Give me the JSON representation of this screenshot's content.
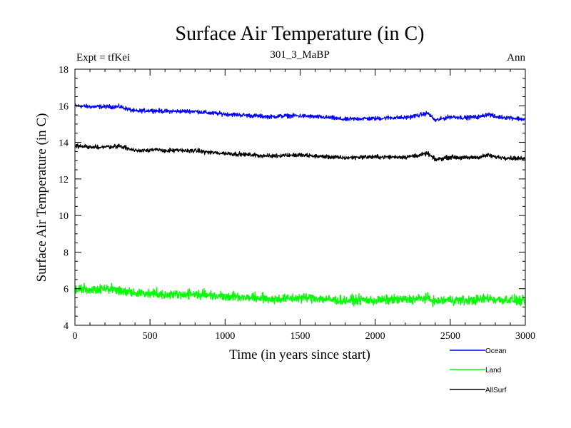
{
  "chart_data": {
    "type": "line",
    "title": "Surface Air Temperature (in C)",
    "subtitle_left": "Expt = tfKei",
    "subtitle_center": "301_3_MaBP",
    "subtitle_right": "Ann",
    "xlabel": "Time (in years since start)",
    "ylabel": "Surface Air Temperature (in C)",
    "xlim": [
      0,
      3000
    ],
    "ylim": [
      4,
      18
    ],
    "xticks": [
      0,
      500,
      1000,
      1500,
      2000,
      2500,
      3000
    ],
    "yticks": [
      4,
      6,
      8,
      10,
      12,
      14,
      16,
      18
    ],
    "x_minor_step": 100,
    "y_minor_step": 0.5,
    "grid": false,
    "legend_position": "bottom-right",
    "x": [
      0,
      100,
      200,
      300,
      400,
      500,
      600,
      700,
      800,
      900,
      1000,
      1100,
      1200,
      1300,
      1400,
      1500,
      1600,
      1700,
      1800,
      1900,
      2000,
      2100,
      2200,
      2300,
      2350,
      2400,
      2500,
      2600,
      2700,
      2750,
      2800,
      2900,
      3000
    ],
    "series": [
      {
        "name": "Ocean",
        "color": "#0000ff",
        "values": [
          16.0,
          15.95,
          15.95,
          15.95,
          15.7,
          15.75,
          15.7,
          15.7,
          15.7,
          15.6,
          15.55,
          15.5,
          15.45,
          15.4,
          15.45,
          15.45,
          15.4,
          15.35,
          15.25,
          15.3,
          15.3,
          15.35,
          15.35,
          15.5,
          15.6,
          15.2,
          15.4,
          15.35,
          15.4,
          15.55,
          15.4,
          15.35,
          15.25
        ]
      },
      {
        "name": "Land",
        "color": "#00ff00",
        "values": [
          6.0,
          5.95,
          6.0,
          5.9,
          5.75,
          5.75,
          5.7,
          5.7,
          5.7,
          5.65,
          5.6,
          5.55,
          5.5,
          5.45,
          5.45,
          5.5,
          5.5,
          5.4,
          5.35,
          5.4,
          5.35,
          5.4,
          5.4,
          5.45,
          5.5,
          5.3,
          5.4,
          5.35,
          5.4,
          5.5,
          5.4,
          5.4,
          5.3
        ]
      },
      {
        "name": "AllSurf",
        "color": "#000000",
        "values": [
          13.8,
          13.75,
          13.75,
          13.8,
          13.55,
          13.6,
          13.55,
          13.55,
          13.55,
          13.45,
          13.4,
          13.35,
          13.3,
          13.25,
          13.3,
          13.3,
          13.25,
          13.2,
          13.15,
          13.2,
          13.2,
          13.2,
          13.2,
          13.3,
          13.4,
          13.05,
          13.2,
          13.15,
          13.2,
          13.3,
          13.2,
          13.15,
          13.1
        ]
      }
    ]
  }
}
